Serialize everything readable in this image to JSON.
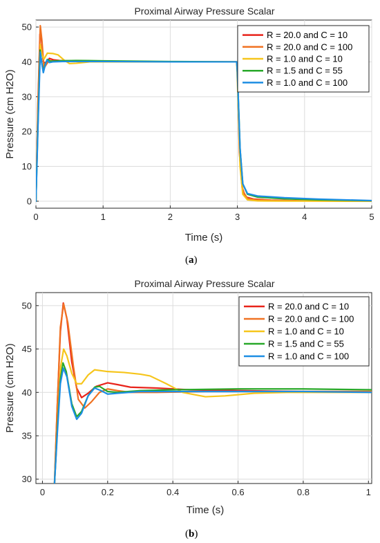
{
  "chart_data": [
    {
      "id": "a",
      "type": "line",
      "title": "Proximal Airway Pressure Scalar",
      "xlabel": "Time (s)",
      "ylabel": "Pressure (cm H2O)",
      "xlim": [
        0,
        5
      ],
      "ylim": [
        -2,
        52
      ],
      "xticks": [
        0,
        1,
        2,
        3,
        4,
        5
      ],
      "yticks": [
        0,
        10,
        20,
        30,
        40,
        50
      ],
      "grid": true,
      "legend_position": "top-right",
      "caption_letter": "a",
      "series": [
        {
          "name": "R = 20.0 and C = 10",
          "color": "#e8231a",
          "points": [
            [
              0,
              0
            ],
            [
              0.03,
              28
            ],
            [
              0.06,
              48
            ],
            [
              0.08,
              47
            ],
            [
              0.11,
              40
            ],
            [
              0.15,
              39.6
            ],
            [
              0.2,
              41
            ],
            [
              0.26,
              40.6
            ],
            [
              0.35,
              40.4
            ],
            [
              0.6,
              40.2
            ],
            [
              1.5,
              40.1
            ],
            [
              2.5,
              40.0
            ],
            [
              2.99,
              40.0
            ],
            [
              3.0,
              38
            ],
            [
              3.03,
              14
            ],
            [
              3.07,
              4
            ],
            [
              3.12,
              1.2
            ],
            [
              3.25,
              0.6
            ],
            [
              3.5,
              0.3
            ],
            [
              4.0,
              0.1
            ],
            [
              5.0,
              0.05
            ]
          ]
        },
        {
          "name": "R = 20.0 and C = 100",
          "color": "#f07222",
          "points": [
            [
              0,
              0
            ],
            [
              0.03,
              26
            ],
            [
              0.065,
              50.4
            ],
            [
              0.09,
              46
            ],
            [
              0.12,
              38.2
            ],
            [
              0.16,
              39.4
            ],
            [
              0.2,
              40.4
            ],
            [
              0.3,
              40.1
            ],
            [
              0.6,
              40.1
            ],
            [
              1.5,
              40.0
            ],
            [
              2.5,
              40.0
            ],
            [
              2.99,
              40.0
            ],
            [
              3.0,
              37
            ],
            [
              3.04,
              12
            ],
            [
              3.08,
              3
            ],
            [
              3.15,
              0.8
            ],
            [
              3.3,
              0.4
            ],
            [
              3.6,
              0.2
            ],
            [
              4.0,
              0.1
            ],
            [
              5.0,
              0.05
            ]
          ]
        },
        {
          "name": "R = 1.0 and C = 10",
          "color": "#f6c51b",
          "points": [
            [
              0,
              0
            ],
            [
              0.03,
              24
            ],
            [
              0.065,
              45
            ],
            [
              0.09,
              42
            ],
            [
              0.12,
              40.8
            ],
            [
              0.17,
              42.5
            ],
            [
              0.25,
              42.4
            ],
            [
              0.33,
              42.0
            ],
            [
              0.42,
              40.5
            ],
            [
              0.5,
              39.5
            ],
            [
              0.6,
              39.6
            ],
            [
              0.8,
              40.0
            ],
            [
              1.5,
              40.0
            ],
            [
              2.5,
              40.0
            ],
            [
              2.99,
              40.0
            ],
            [
              3.0,
              35
            ],
            [
              3.04,
              10
            ],
            [
              3.08,
              2
            ],
            [
              3.15,
              0.4
            ],
            [
              3.3,
              0.1
            ],
            [
              3.6,
              0.05
            ],
            [
              5.0,
              0.02
            ]
          ]
        },
        {
          "name": "R = 1.5 and C = 55",
          "color": "#28a829",
          "points": [
            [
              0,
              0
            ],
            [
              0.03,
              22
            ],
            [
              0.062,
              43.4
            ],
            [
              0.085,
              40
            ],
            [
              0.11,
              37.2
            ],
            [
              0.14,
              39.5
            ],
            [
              0.17,
              40.7
            ],
            [
              0.22,
              40.2
            ],
            [
              0.3,
              40.3
            ],
            [
              0.6,
              40.4
            ],
            [
              1.0,
              40.3
            ],
            [
              2.0,
              40.1
            ],
            [
              2.99,
              40.0
            ],
            [
              3.0,
              37
            ],
            [
              3.04,
              15
            ],
            [
              3.08,
              5
            ],
            [
              3.15,
              2.0
            ],
            [
              3.3,
              1.2
            ],
            [
              3.7,
              0.7
            ],
            [
              4.2,
              0.4
            ],
            [
              5.0,
              0.15
            ]
          ]
        },
        {
          "name": "R = 1.0 and C = 100",
          "color": "#1d8ee3",
          "points": [
            [
              0,
              0
            ],
            [
              0.03,
              21
            ],
            [
              0.065,
              42.8
            ],
            [
              0.088,
              39.5
            ],
            [
              0.11,
              36.9
            ],
            [
              0.14,
              39.2
            ],
            [
              0.165,
              40.6
            ],
            [
              0.2,
              39.8
            ],
            [
              0.25,
              40.0
            ],
            [
              0.4,
              40.1
            ],
            [
              1.0,
              40.1
            ],
            [
              2.0,
              40.0
            ],
            [
              2.99,
              40.0
            ],
            [
              3.0,
              37
            ],
            [
              3.04,
              15
            ],
            [
              3.08,
              5
            ],
            [
              3.15,
              2.2
            ],
            [
              3.3,
              1.5
            ],
            [
              3.7,
              1.0
            ],
            [
              4.2,
              0.6
            ],
            [
              5.0,
              0.2
            ]
          ]
        }
      ]
    },
    {
      "id": "b",
      "type": "line",
      "title": "Proximal Airway Pressure Scalar",
      "xlabel": "Time (s)",
      "ylabel": "Pressure (cm H2O)",
      "xlim": [
        -0.02,
        1.01
      ],
      "ylim": [
        29.5,
        51.5
      ],
      "xticks": [
        0,
        0.2,
        0.4,
        0.6,
        0.8,
        1
      ],
      "yticks": [
        30,
        35,
        40,
        45,
        50
      ],
      "grid": true,
      "legend_position": "top-right",
      "caption_letter": "b",
      "series": [
        {
          "name": "R = 20.0 and C = 10",
          "color": "#e8231a",
          "points": [
            [
              0.037,
              29.5
            ],
            [
              0.045,
              38
            ],
            [
              0.055,
              47
            ],
            [
              0.064,
              50.3
            ],
            [
              0.075,
              48.5
            ],
            [
              0.09,
              43.5
            ],
            [
              0.105,
              40.5
            ],
            [
              0.12,
              39.4
            ],
            [
              0.14,
              39.9
            ],
            [
              0.165,
              40.7
            ],
            [
              0.2,
              41.1
            ],
            [
              0.23,
              40.9
            ],
            [
              0.27,
              40.6
            ],
            [
              0.35,
              40.5
            ],
            [
              0.45,
              40.3
            ],
            [
              0.6,
              40.2
            ],
            [
              0.8,
              40.1
            ],
            [
              1.01,
              40.1
            ]
          ]
        },
        {
          "name": "R = 20.0 and C = 100",
          "color": "#f07222",
          "points": [
            [
              0.037,
              29.5
            ],
            [
              0.045,
              38
            ],
            [
              0.055,
              47.5
            ],
            [
              0.065,
              50.2
            ],
            [
              0.078,
              48
            ],
            [
              0.095,
              43
            ],
            [
              0.11,
              39.2
            ],
            [
              0.13,
              38.2
            ],
            [
              0.15,
              38.9
            ],
            [
              0.175,
              40.0
            ],
            [
              0.2,
              40.4
            ],
            [
              0.23,
              40.2
            ],
            [
              0.27,
              40.0
            ],
            [
              0.35,
              40.0
            ],
            [
              0.5,
              40.1
            ],
            [
              0.7,
              40.1
            ],
            [
              1.01,
              40.1
            ]
          ]
        },
        {
          "name": "R = 1.0 and C = 10",
          "color": "#f6c51b",
          "points": [
            [
              0.037,
              29.5
            ],
            [
              0.046,
              36
            ],
            [
              0.056,
              43
            ],
            [
              0.065,
              45.0
            ],
            [
              0.075,
              44.2
            ],
            [
              0.09,
              42.2
            ],
            [
              0.105,
              41.0
            ],
            [
              0.12,
              41.0
            ],
            [
              0.14,
              42.0
            ],
            [
              0.16,
              42.6
            ],
            [
              0.2,
              42.4
            ],
            [
              0.25,
              42.3
            ],
            [
              0.3,
              42.1
            ],
            [
              0.33,
              41.9
            ],
            [
              0.38,
              41.0
            ],
            [
              0.43,
              40.0
            ],
            [
              0.5,
              39.5
            ],
            [
              0.56,
              39.6
            ],
            [
              0.65,
              39.9
            ],
            [
              0.75,
              40.0
            ],
            [
              1.01,
              40.0
            ]
          ]
        },
        {
          "name": "R = 1.5 and C = 55",
          "color": "#28a829",
          "points": [
            [
              0.037,
              29.5
            ],
            [
              0.046,
              36
            ],
            [
              0.055,
              41.5
            ],
            [
              0.063,
              43.4
            ],
            [
              0.073,
              42.4
            ],
            [
              0.09,
              38.7
            ],
            [
              0.105,
              37.2
            ],
            [
              0.12,
              37.8
            ],
            [
              0.14,
              39.6
            ],
            [
              0.16,
              40.6
            ],
            [
              0.175,
              40.7
            ],
            [
              0.2,
              40.1
            ],
            [
              0.23,
              40.0
            ],
            [
              0.3,
              40.2
            ],
            [
              0.4,
              40.3
            ],
            [
              0.6,
              40.4
            ],
            [
              0.8,
              40.4
            ],
            [
              1.01,
              40.3
            ]
          ]
        },
        {
          "name": "R = 1.0 and C = 100",
          "color": "#1d8ee3",
          "points": [
            [
              0.037,
              29.5
            ],
            [
              0.046,
              35.5
            ],
            [
              0.055,
              41
            ],
            [
              0.064,
              42.8
            ],
            [
              0.075,
              41.8
            ],
            [
              0.09,
              38.4
            ],
            [
              0.105,
              36.9
            ],
            [
              0.12,
              37.6
            ],
            [
              0.14,
              39.6
            ],
            [
              0.16,
              40.5
            ],
            [
              0.18,
              40.2
            ],
            [
              0.2,
              39.8
            ],
            [
              0.23,
              39.9
            ],
            [
              0.3,
              40.1
            ],
            [
              0.5,
              40.1
            ],
            [
              0.8,
              40.1
            ],
            [
              1.01,
              40.0
            ]
          ]
        }
      ]
    }
  ]
}
